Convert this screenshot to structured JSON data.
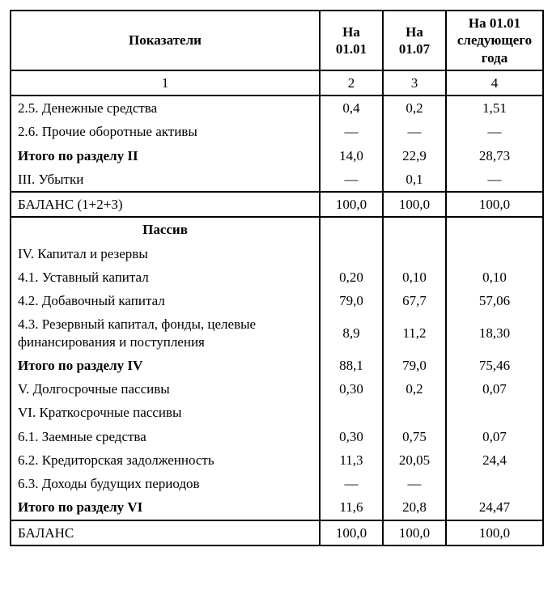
{
  "table": {
    "headers": {
      "c1": "Показатели",
      "c2": "На 01.01",
      "c3": "На 01.07",
      "c4": "На 01.01 следующего года"
    },
    "colnums": {
      "c1": "1",
      "c2": "2",
      "c3": "3",
      "c4": "4"
    },
    "rows": {
      "r25": {
        "label": "2.5. Денежные средства",
        "v1": "0,4",
        "v2": "0,2",
        "v3": "1,51"
      },
      "r26": {
        "label": "2.6. Прочие оборотные активы",
        "v1": "—",
        "v2": "—",
        "v3": "—"
      },
      "rit2": {
        "label": "Итого по разделу II",
        "v1": "14,0",
        "v2": "22,9",
        "v3": "28,73"
      },
      "r3": {
        "label": "III. Убытки",
        "v1": "—",
        "v2": "0,1",
        "v3": "—"
      },
      "rbal1": {
        "label": "БАЛАНС (1+2+3)",
        "v1": "100,0",
        "v2": "100,0",
        "v3": "100,0"
      },
      "passiv": {
        "label": "Пассив"
      },
      "r4": {
        "label": "IV. Капитал и резервы"
      },
      "r41": {
        "label": "4.1. Уставный капитал",
        "v1": "0,20",
        "v2": "0,10",
        "v3": "0,10"
      },
      "r42": {
        "label": "4.2. Добавочный капитал",
        "v1": "79,0",
        "v2": "67,7",
        "v3": "57,06"
      },
      "r43": {
        "label": "4.3. Резервный капитал, фонды, целевые финансирования и поступления",
        "v1": "8,9",
        "v2": "11,2",
        "v3": "18,30"
      },
      "rit4": {
        "label": "Итого по разделу IV",
        "v1": "88,1",
        "v2": "79,0",
        "v3": "75,46"
      },
      "r5": {
        "label": "V. Долгосрочные пассивы",
        "v1": "0,30",
        "v2": "0,2",
        "v3": "0,07"
      },
      "r6": {
        "label": "VI. Краткосрочные пассивы"
      },
      "r61": {
        "label": "6.1. Заемные средства",
        "v1": "0,30",
        "v2": "0,75",
        "v3": "0,07"
      },
      "r62": {
        "label": "6.2. Кредиторская задолженность",
        "v1": "11,3",
        "v2": "20,05",
        "v3": "24,4"
      },
      "r63": {
        "label": "6.3. Доходы будущих периодов",
        "v1": "—",
        "v2": "—",
        "v3": ""
      },
      "rit6": {
        "label": "Итого по разделу VI",
        "v1": "11,6",
        "v2": "20,8",
        "v3": "24,47"
      },
      "rbal2": {
        "label": "БАЛАНС",
        "v1": "100,0",
        "v2": "100,0",
        "v3": "100,0"
      }
    }
  }
}
